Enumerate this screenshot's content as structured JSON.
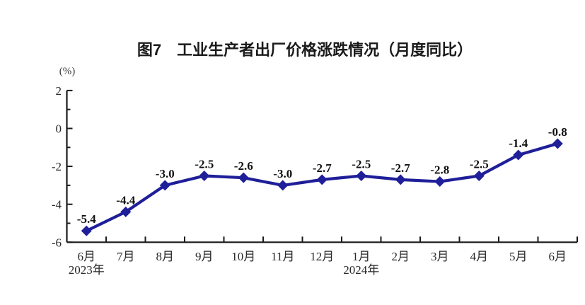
{
  "chart_data": {
    "type": "line",
    "title": "图7　工业生产者出厂价格涨跌情况（月度同比）",
    "ylabel": "(%)",
    "xlabel": "",
    "categories": [
      "6月",
      "7月",
      "8月",
      "9月",
      "10月",
      "11月",
      "12月",
      "1月",
      "2月",
      "3月",
      "4月",
      "5月",
      "6月"
    ],
    "x_axis_year_labels": [
      {
        "category_index": 0,
        "label": "2023年"
      },
      {
        "category_index": 7,
        "label": "2024年"
      }
    ],
    "values": [
      -5.4,
      -4.4,
      -3.0,
      -2.5,
      -2.6,
      -3.0,
      -2.7,
      -2.5,
      -2.7,
      -2.8,
      -2.5,
      -1.4,
      -0.8
    ],
    "data_labels": [
      "-5.4",
      "-4.4",
      "-3.0",
      "-2.5",
      "-2.6",
      "-3.0",
      "-2.7",
      "-2.5",
      "-2.7",
      "-2.8",
      "-2.5",
      "-1.4",
      "-0.8"
    ],
    "y_ticks": [
      2,
      0,
      -2,
      -4,
      -6
    ],
    "y_minor_ticks": [
      1,
      -1,
      -3,
      -5
    ],
    "ylim": [
      -6,
      2
    ],
    "grid": false,
    "legend_position": "none",
    "marker": "diamond",
    "line_color": "#1f1f99",
    "axis_color": "#1a1a1a"
  }
}
